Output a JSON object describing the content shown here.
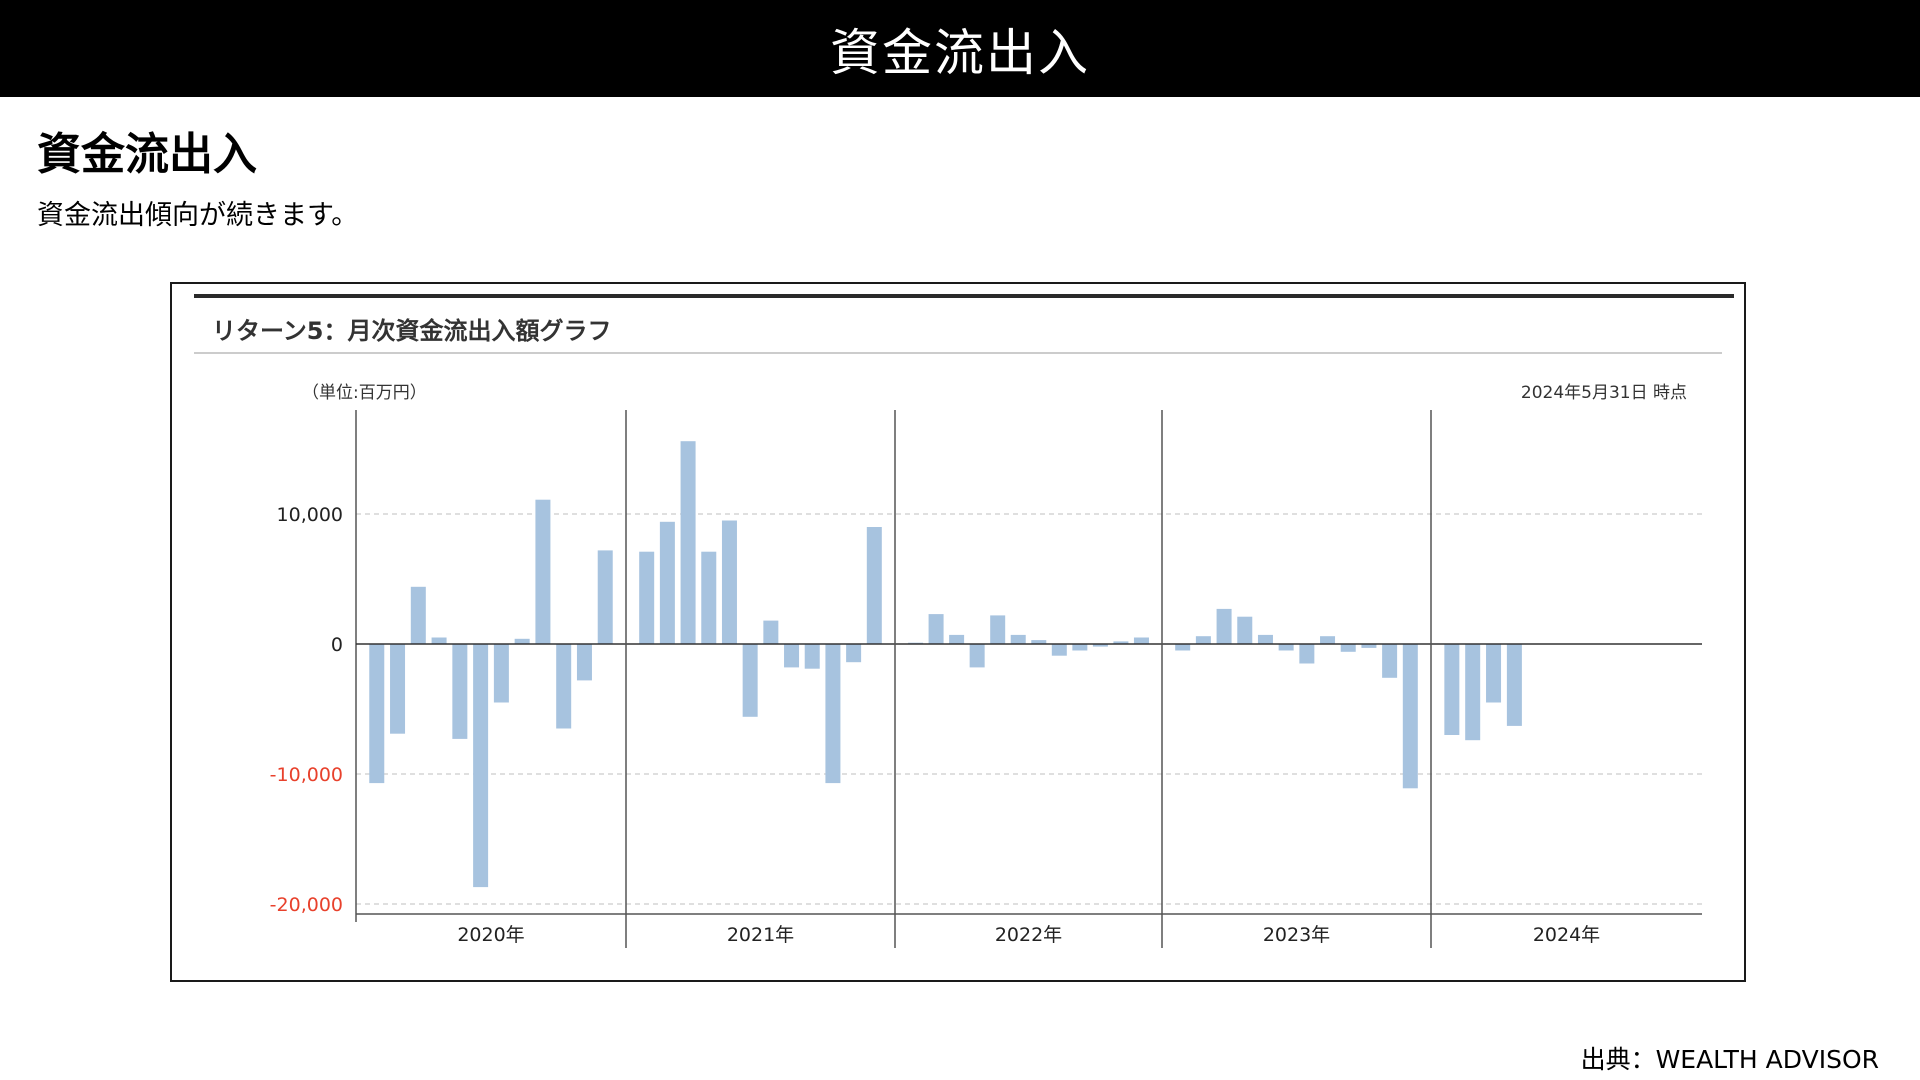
{
  "header": {
    "title": "資金流出入"
  },
  "section": {
    "heading": "資金流出入",
    "description": "資金流出傾向が続きます。"
  },
  "chart": {
    "title": "リターン5：月次資金流出入額グラフ",
    "unit": "（単位:百万円）",
    "as_of": "2024年5月31日 時点"
  },
  "source": "出典：WEALTH ADVISOR",
  "colors": {
    "bar": "#a7c3df",
    "negative_tick": "#e8412c",
    "axis": "#333333",
    "grid": "#cccccc"
  },
  "chart_data": {
    "type": "bar",
    "ylim": [
      -20000,
      15500
    ],
    "yticks": [
      {
        "value": 10000,
        "label": "10,000"
      },
      {
        "value": 0,
        "label": "0"
      },
      {
        "value": -10000,
        "label": "-10,000"
      },
      {
        "value": -20000,
        "label": "-20,000"
      }
    ],
    "grid": true,
    "years": [
      "2020年",
      "2021年",
      "2022年",
      "2023年",
      "2024年"
    ],
    "months": [
      "2020-01",
      "2020-02",
      "2020-03",
      "2020-04",
      "2020-05",
      "2020-06",
      "2020-07",
      "2020-08",
      "2020-09",
      "2020-10",
      "2020-11",
      "2020-12",
      "2021-01",
      "2021-02",
      "2021-03",
      "2021-04",
      "2021-05",
      "2021-06",
      "2021-07",
      "2021-08",
      "2021-09",
      "2021-10",
      "2021-11",
      "2021-12",
      "2022-01",
      "2022-02",
      "2022-03",
      "2022-04",
      "2022-05",
      "2022-06",
      "2022-07",
      "2022-08",
      "2022-09",
      "2022-10",
      "2022-11",
      "2022-12",
      "2023-01",
      "2023-02",
      "2023-03",
      "2023-04",
      "2023-05",
      "2023-06",
      "2023-07",
      "2023-08",
      "2023-09",
      "2023-10",
      "2023-11",
      "2023-12",
      "2024-01",
      "2024-02",
      "2024-03",
      "2024-04",
      "2024-05"
    ],
    "values": [
      -10700,
      -6900,
      4400,
      500,
      -7300,
      -18700,
      -4500,
      400,
      11100,
      -6500,
      -2800,
      7200,
      7100,
      9400,
      15600,
      7100,
      9500,
      -5600,
      1800,
      -1800,
      -1900,
      -10700,
      -1400,
      9000,
      100,
      2300,
      700,
      -1800,
      2200,
      700,
      300,
      -900,
      -500,
      -200,
      200,
      500,
      -500,
      600,
      2700,
      2100,
      700,
      -500,
      -1500,
      600,
      -600,
      -300,
      -2600,
      -11100,
      -7000,
      -7400,
      -4500,
      -6300,
      0
    ]
  }
}
